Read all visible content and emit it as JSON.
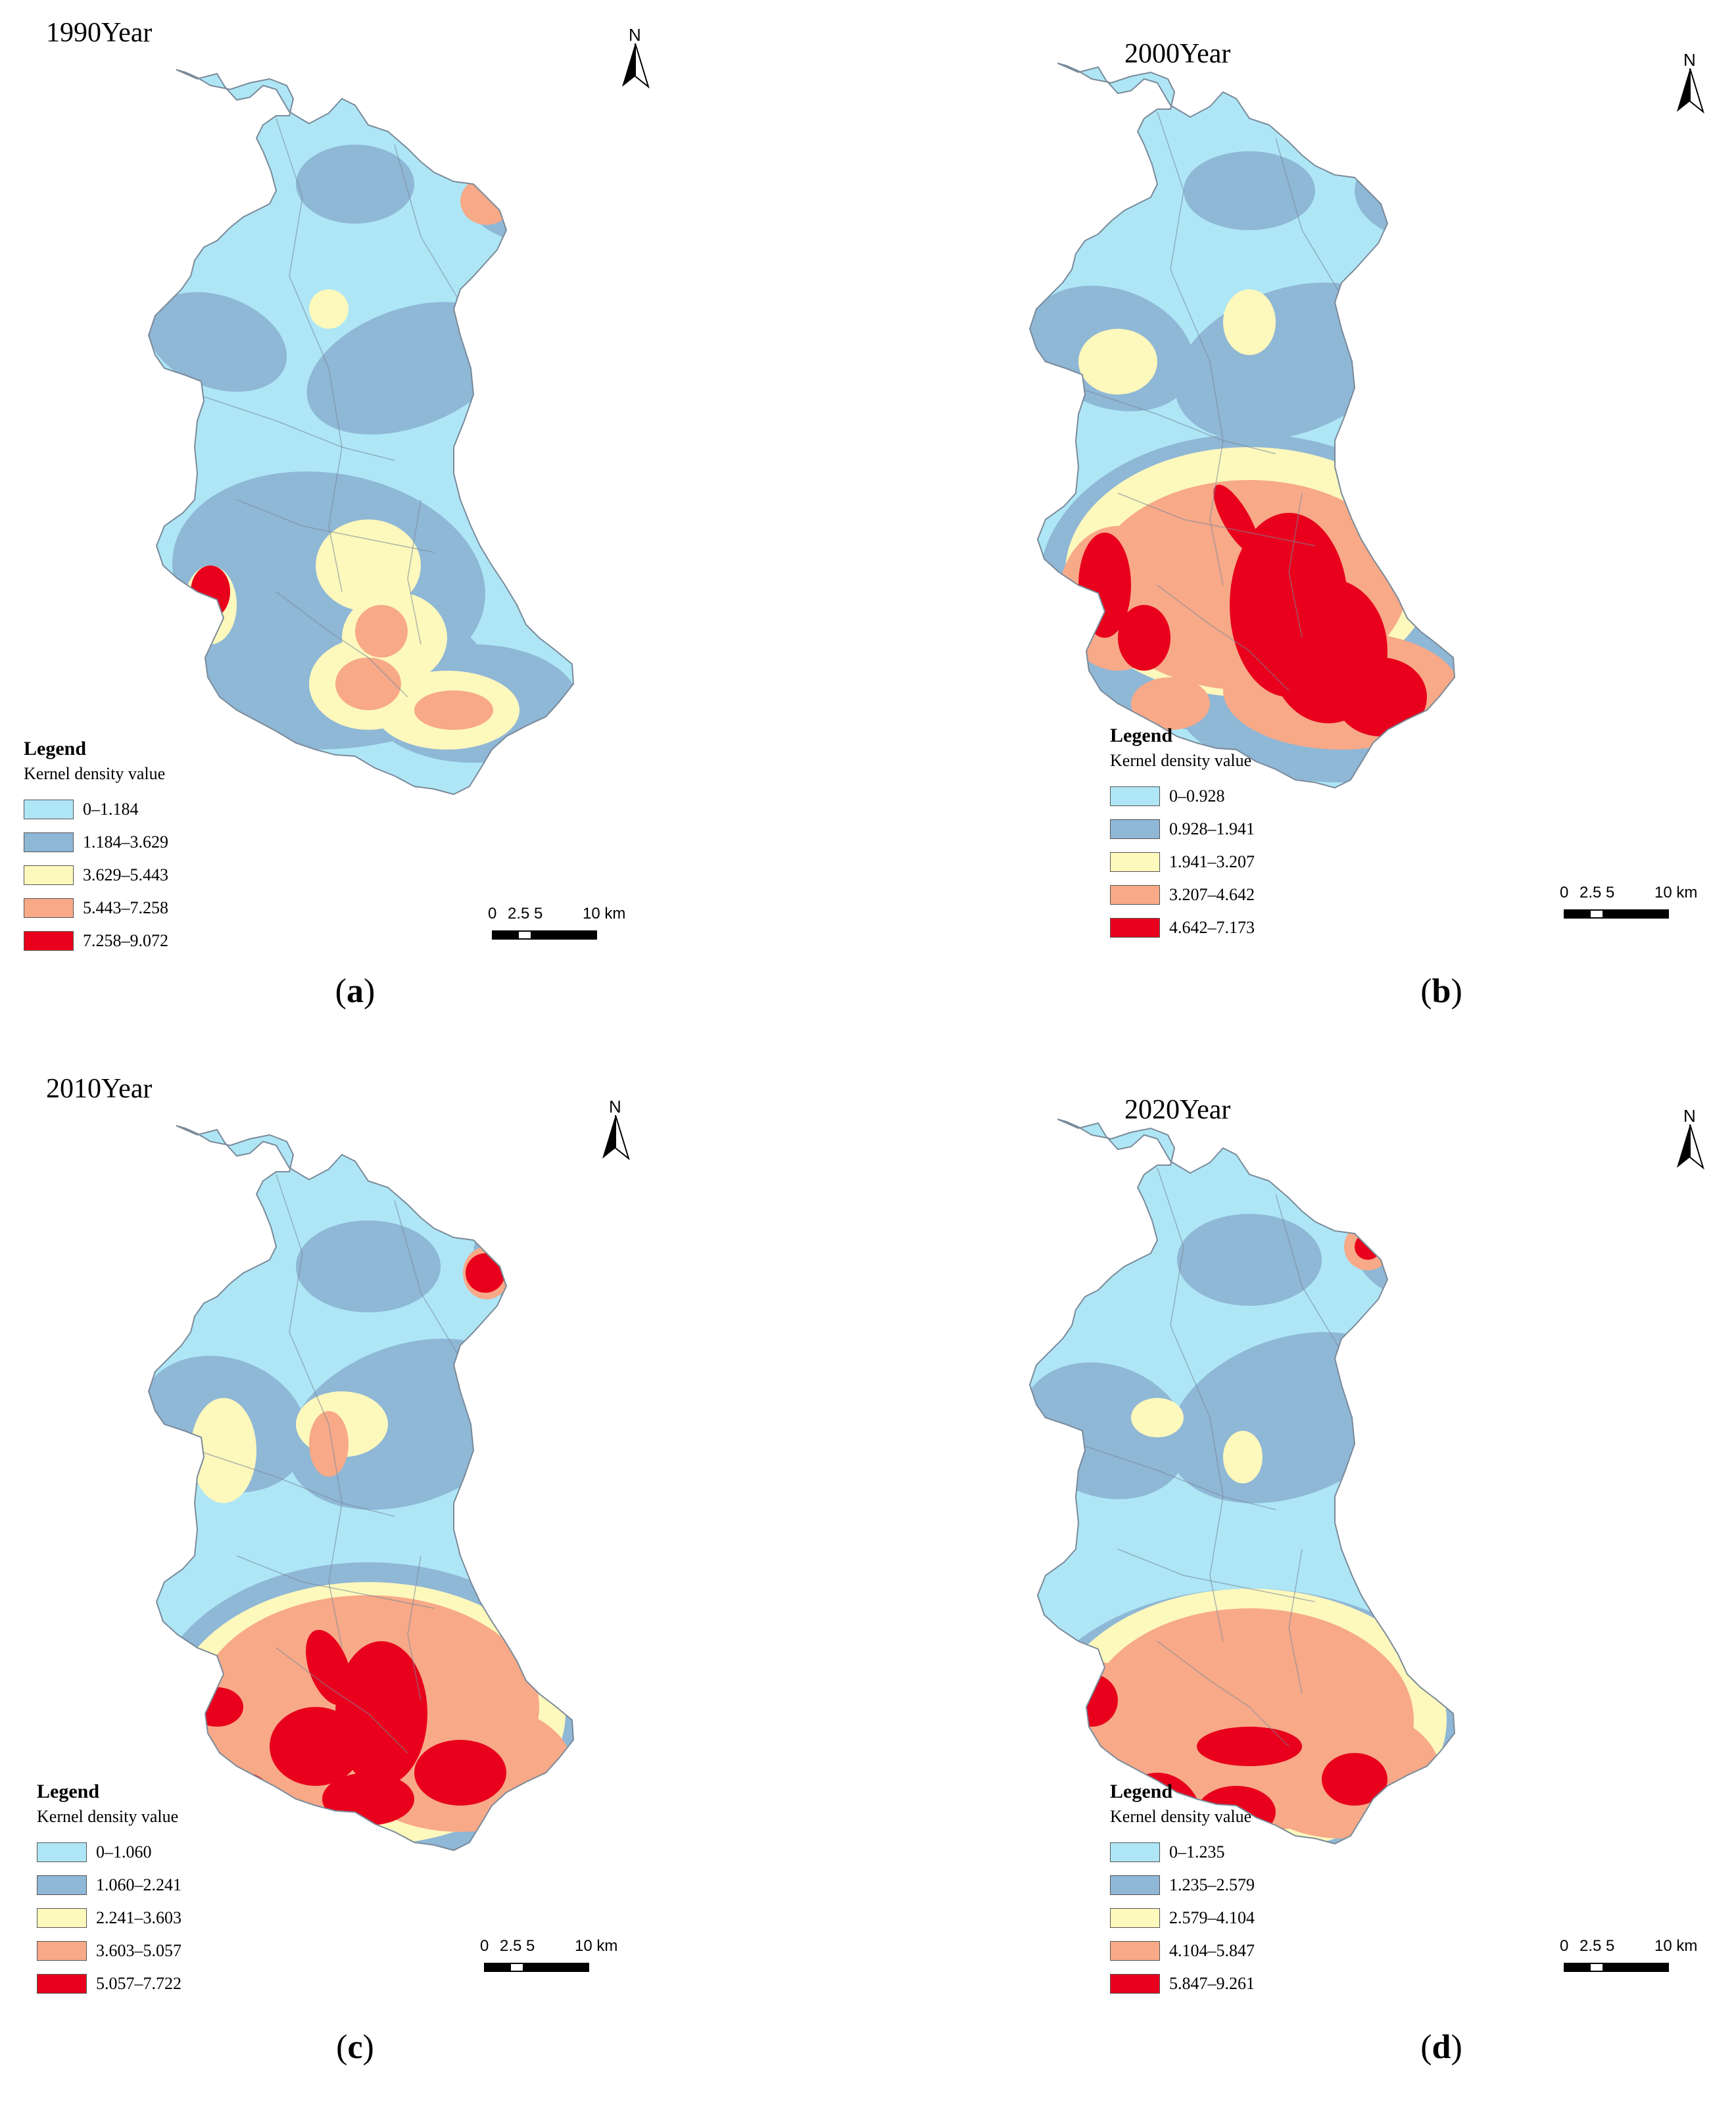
{
  "colors": {
    "class1": "#aee6f6",
    "class2": "#8fb7d6",
    "class3": "#fdf8bc",
    "class4": "#f7a988",
    "class5": "#e8001c",
    "boundary": "#7a8a99"
  },
  "map_labels": {
    "north": "N",
    "legend_title": "Legend",
    "legend_subtitle": "Kernel density value",
    "scale_ticks": [
      "0",
      "2.5",
      "5",
      "10 km"
    ]
  },
  "panels": [
    {
      "title": "1990Year",
      "label_open": "(",
      "label_letter": "a",
      "label_close": ")",
      "classes": [
        "0–1.184",
        "1.184–3.629",
        "3.629–5.443",
        "5.443–7.258",
        "7.258–9.072"
      ]
    },
    {
      "title": "2000Year",
      "label_open": "(",
      "label_letter": "b",
      "label_close": ")",
      "classes": [
        "0–0.928",
        "0.928–1.941",
        "1.941–3.207",
        "3.207–4.642",
        "4.642–7.173"
      ]
    },
    {
      "title": "2010Year",
      "label_open": "(",
      "label_letter": "c",
      "label_close": ")",
      "classes": [
        "0–1.060",
        "1.060–2.241",
        "2.241–3.603",
        "3.603–5.057",
        "5.057–7.722"
      ]
    },
    {
      "title": "2020Year",
      "label_open": "(",
      "label_letter": "d",
      "label_close": ")",
      "classes": [
        "0–1.235",
        "1.235–2.579",
        "2.579–4.104",
        "4.104–5.847",
        "5.847–9.261"
      ]
    }
  ]
}
